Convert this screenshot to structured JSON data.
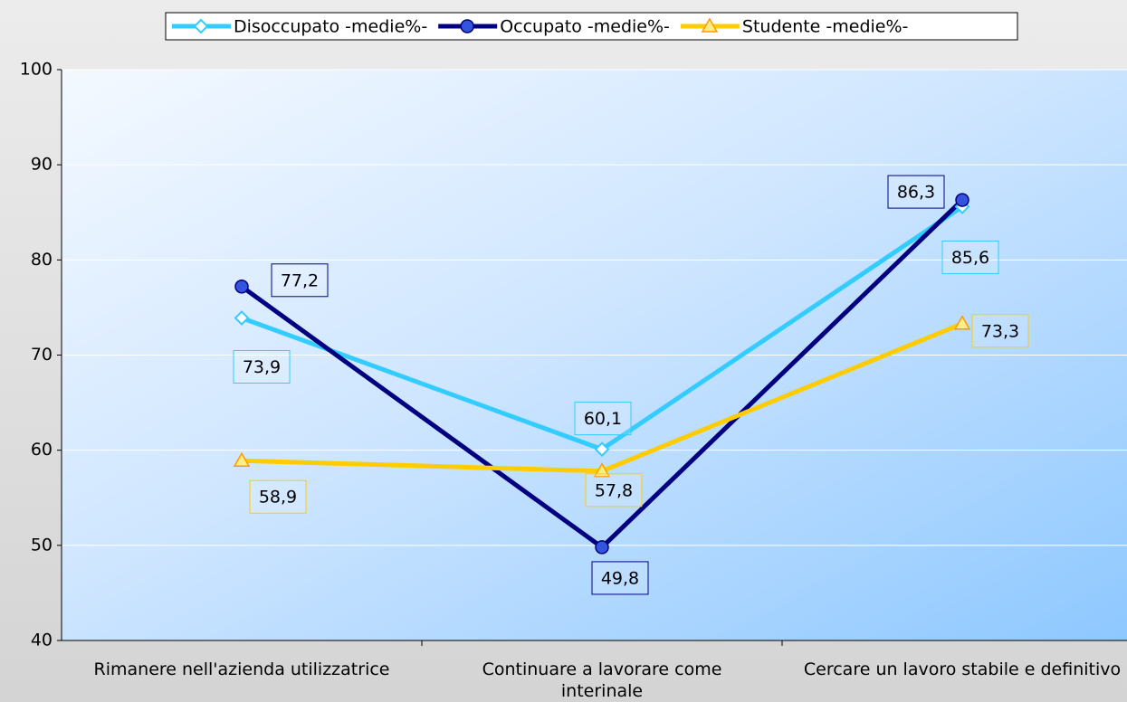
{
  "chart_data": {
    "type": "line",
    "categories": [
      "Rimanere nell'azienda utilizzatrice",
      "Continuare a lavorare come interinale",
      "Cercare un lavoro stabile e definitivo"
    ],
    "series": [
      {
        "name": "Disoccupato -medie%-",
        "color": "#33ccff",
        "marker": "diamond",
        "values": [
          73.9,
          60.1,
          85.6
        ],
        "value_labels": [
          "73,9",
          "60,1",
          "85,6"
        ]
      },
      {
        "name": "Occupato -medie%-",
        "color": "#000080",
        "marker": "circle",
        "values": [
          77.2,
          49.8,
          86.3
        ],
        "value_labels": [
          "77,2",
          "49,8",
          "86,3"
        ]
      },
      {
        "name": "Studente -medie%-",
        "color": "#ffcc00",
        "marker": "triangle",
        "values": [
          58.9,
          57.8,
          73.3
        ],
        "value_labels": [
          "58,9",
          "57,8",
          "73,3"
        ]
      }
    ],
    "ylim": [
      40,
      100
    ],
    "yticks": [
      40,
      50,
      60,
      70,
      80,
      90,
      100
    ],
    "grid": true,
    "legend": "top"
  }
}
